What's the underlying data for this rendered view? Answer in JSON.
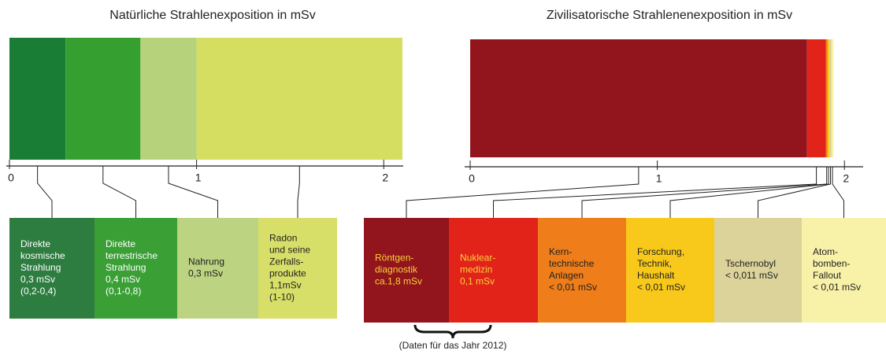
{
  "chart_data": [
    {
      "type": "stacked-bar",
      "title": "Natürliche Strahlenexposition in mSv",
      "xlim": [
        0,
        2.1
      ],
      "xticks": [
        0,
        1,
        2
      ],
      "series": [
        {
          "name": [
            "Direkte",
            "kosmische",
            "Strahlung"
          ],
          "color": "#1a7d35",
          "box_color": "#2e7d40",
          "text_color": "#ffffff",
          "values": [
            0.3
          ],
          "value_labels": [
            "0,3 mSv"
          ],
          "range": "(0,2-0,4)"
        },
        {
          "name": [
            "Direkte",
            "terrestrische",
            "Strahlung"
          ],
          "color": "#35a030",
          "box_color": "#3aa035",
          "text_color": "#ffffff",
          "values": [
            0.4
          ],
          "value_labels": [
            "0,4 mSv"
          ],
          "range": "(0,1-0,8)"
        },
        {
          "name": [
            "Nahrung"
          ],
          "color": "#b6d27a",
          "box_color": "#bcd382",
          "text_color": "#222222",
          "values": [
            0.3
          ],
          "value_labels": [
            "0,3 mSv"
          ]
        },
        {
          "name": [
            "Radon",
            "und seine",
            "Zerfalls-",
            "produkte"
          ],
          "color": "#d5de60",
          "box_color": "#d8df68",
          "text_color": "#222222",
          "values": [
            1.1
          ],
          "value_labels": [
            "1,1mSv"
          ],
          "range": "(1-10)"
        }
      ]
    },
    {
      "type": "stacked-bar",
      "title": "Zivilisatorische Strahlenenexposition in mSv",
      "xlim": [
        0,
        2.1
      ],
      "xticks": [
        0,
        1,
        2
      ],
      "footnote": "(Daten für das Jahr 2012)",
      "series": [
        {
          "name": [
            "Röntgen-",
            "diagnostik"
          ],
          "color": "#92141c",
          "box_color": "#92141c",
          "text_color": "#f8d23a",
          "values": [
            1.8
          ],
          "value_labels": [
            "ca.1,8 mSv"
          ]
        },
        {
          "name": [
            "Nuklear-",
            "medizin"
          ],
          "color": "#e2231a",
          "box_color": "#e2231a",
          "text_color": "#f8d23a",
          "values": [
            0.1
          ],
          "value_labels": [
            "0,1 mSv"
          ]
        },
        {
          "name": [
            "Kern-",
            "technische",
            "Anlagen"
          ],
          "color": "#ee7d1a",
          "box_color": "#ee7d1a",
          "text_color": "#222222",
          "values": [
            0.01
          ],
          "value_labels": [
            "< 0,01 mSv"
          ]
        },
        {
          "name": [
            "Forschung,",
            "Technik,",
            "Haushalt"
          ],
          "color": "#f8c91a",
          "box_color": "#f8c91a",
          "text_color": "#222222",
          "values": [
            0.01
          ],
          "value_labels": [
            "< 0,01 mSv"
          ]
        },
        {
          "name": [
            "Tschernobyl"
          ],
          "color": "#dcd39a",
          "box_color": "#dcd39a",
          "text_color": "#222222",
          "values": [
            0.011
          ],
          "value_labels": [
            "< 0,011 mSv"
          ]
        },
        {
          "name": [
            "Atom-",
            "bomben-",
            "Fallout"
          ],
          "color": "#f8f1a8",
          "box_color": "#f8f1a8",
          "text_color": "#222222",
          "values": [
            0.01
          ],
          "value_labels": [
            "< 0,01 mSv"
          ]
        }
      ]
    }
  ]
}
